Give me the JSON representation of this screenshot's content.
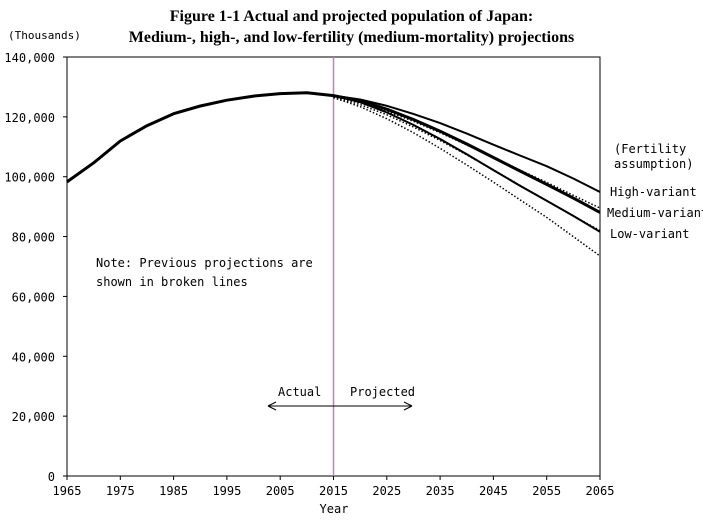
{
  "chart_data": {
    "type": "line",
    "title_line1": "Figure 1-1 Actual and projected population of Japan:",
    "title_line2": "Medium-, high-, and low-fertility (medium-mortality) projections",
    "ylabel": "(Thousands)",
    "xlabel": "Year",
    "xlim": [
      1965,
      2065
    ],
    "ylim": [
      0,
      140000
    ],
    "xticks": [
      "1965",
      "1975",
      "1985",
      "1995",
      "2005",
      "2015",
      "2025",
      "2035",
      "2045",
      "2055",
      "2065"
    ],
    "yticks": [
      "0",
      "20,000",
      "40,000",
      "60,000",
      "80,000",
      "100,000",
      "120,000",
      "140,000"
    ],
    "divider_year": 2015,
    "legend_title": [
      "(Fertility",
      "assumption)"
    ],
    "annotation_note": [
      "Note: Previous projections are",
      "shown in broken lines"
    ],
    "label_actual": "Actual",
    "label_projected": "Projected",
    "series": [
      {
        "name": "Actual",
        "style": "solid",
        "width": 3,
        "x": [
          1965,
          1970,
          1971,
          1975,
          1980,
          1985,
          1990,
          1995,
          2000,
          2005,
          2010,
          2015
        ],
        "y": [
          98275,
          104665,
          106100,
          111940,
          117060,
          121049,
          123611,
          125570,
          126926,
          127768,
          128057,
          127095
        ]
      },
      {
        "name": "High-variant",
        "style": "solid",
        "width": 2,
        "x": [
          2015,
          2020,
          2025,
          2030,
          2035,
          2040,
          2045,
          2050,
          2055,
          2060,
          2065
        ],
        "y": [
          127095,
          125800,
          123700,
          121000,
          117900,
          114400,
          110700,
          107100,
          103500,
          99400,
          94900
        ]
      },
      {
        "name": "Medium-variant",
        "style": "solid",
        "width": 3,
        "x": [
          2015,
          2020,
          2025,
          2030,
          2035,
          2040,
          2045,
          2050,
          2055,
          2060,
          2065
        ],
        "y": [
          127095,
          125325,
          122544,
          119125,
          115216,
          110919,
          106421,
          101923,
          97441,
          92840,
          88077
        ]
      },
      {
        "name": "Low-variant",
        "style": "solid",
        "width": 2,
        "x": [
          2015,
          2020,
          2025,
          2030,
          2035,
          2040,
          2045,
          2050,
          2055,
          2060,
          2065
        ],
        "y": [
          127095,
          124900,
          121500,
          117300,
          112600,
          107500,
          102200,
          97000,
          92000,
          86900,
          81600
        ]
      },
      {
        "style": "dotted",
        "width": 1.5,
        "x": [
          2015,
          2020,
          2025,
          2030,
          2035,
          2040,
          2045,
          2050,
          2055,
          2060,
          2065
        ],
        "y": [
          126800,
          124700,
          121900,
          118500,
          114700,
          110600,
          106400,
          102200,
          98100,
          93800,
          89500
        ]
      },
      {
        "style": "dotted",
        "width": 1.5,
        "x": [
          2015,
          2020,
          2025,
          2030,
          2035,
          2040,
          2045,
          2050,
          2055,
          2060,
          2065
        ],
        "y": [
          126600,
          124100,
          120700,
          116600,
          112100,
          107300,
          102300,
          97100,
          92000,
          86900,
          82000
        ]
      },
      {
        "style": "dotted",
        "width": 1.5,
        "x": [
          2015,
          2020,
          2025,
          2030,
          2035,
          2040,
          2045,
          2050,
          2055,
          2060,
          2065
        ],
        "y": [
          126400,
          123400,
          119400,
          114700,
          109500,
          103900,
          98200,
          92300,
          86400,
          80000,
          73500
        ]
      }
    ],
    "end_labels": [
      "High-variant",
      "Medium-variant",
      "Low-variant"
    ],
    "grid": false,
    "legend": "right"
  }
}
